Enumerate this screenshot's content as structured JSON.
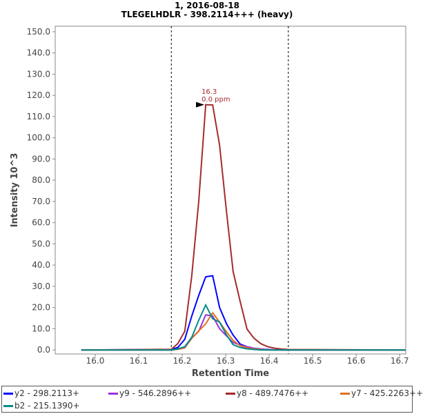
{
  "chart_data": {
    "type": "line",
    "title": "1, 2016-08-18",
    "subtitle": "TLEGELHDLR - 398.2114+++ (heavy)",
    "xlabel": "Retention Time",
    "ylabel": "Intensity 10^3",
    "xlim": [
      15.908,
      16.714
    ],
    "ylim": [
      -1.9,
      152.6
    ],
    "xticks": [
      "16.0",
      "16.1",
      "16.2",
      "16.3",
      "16.4",
      "16.5",
      "16.6",
      "16.7"
    ],
    "yticks": [
      "0.0",
      "10.0",
      "20.0",
      "30.0",
      "40.0",
      "50.0",
      "60.0",
      "70.0",
      "80.0",
      "90.0",
      "100.0",
      "110.0",
      "120.0",
      "130.0",
      "140.0",
      "150.0"
    ],
    "grid": false,
    "legend_position": "bottom",
    "boundaries": [
      16.175,
      16.444
    ],
    "annotation": {
      "x": 16.254,
      "y": 115.6,
      "line1": "16.3",
      "line2": "0.0 ppm",
      "color": "#a52a2a"
    },
    "x": [
      15.968,
      16.175,
      16.19,
      16.206,
      16.222,
      16.238,
      16.254,
      16.27,
      16.286,
      16.302,
      16.317,
      16.333,
      16.349,
      16.365,
      16.381,
      16.397,
      16.413,
      16.429,
      16.444,
      16.714
    ],
    "series": [
      {
        "name": "y2 - 298.2113+",
        "color": "#0000ff",
        "values": [
          0,
          0.2,
          1.2,
          5,
          16,
          25.7,
          34.5,
          35,
          20,
          12.3,
          7,
          2.8,
          1.5,
          0.8,
          0.4,
          0.2,
          0.1,
          0,
          0,
          0
        ]
      },
      {
        "name": "y9 - 546.2896++",
        "color": "#9b30e0",
        "values": [
          0,
          0,
          0.3,
          1,
          5.5,
          8.8,
          16.5,
          16,
          10,
          6.6,
          3.5,
          2.3,
          1.5,
          0.8,
          0.3,
          0.1,
          0,
          0,
          0,
          0
        ]
      },
      {
        "name": "y8 - 489.7476++",
        "color": "#a52a2a",
        "values": [
          0,
          0.3,
          3,
          8.8,
          35,
          70,
          115.6,
          115.5,
          96.6,
          65,
          37,
          23,
          9.8,
          5.5,
          2.9,
          1.5,
          0.8,
          0.4,
          0.2,
          0
        ]
      },
      {
        "name": "y7 - 425.2263++",
        "color": "#e07020",
        "values": [
          0,
          0,
          0.3,
          1,
          5.5,
          9,
          12.3,
          17.5,
          13.1,
          8.5,
          4.5,
          2,
          1,
          0.5,
          0.2,
          0,
          0,
          0,
          0,
          0
        ]
      },
      {
        "name": "b2 - 215.1390+",
        "color": "#008b8b",
        "values": [
          0,
          0,
          0.5,
          1.5,
          6,
          14,
          21.2,
          14.7,
          13.1,
          7,
          2.5,
          1.2,
          0.5,
          0.2,
          0,
          0,
          0,
          0,
          0,
          0
        ]
      }
    ]
  }
}
